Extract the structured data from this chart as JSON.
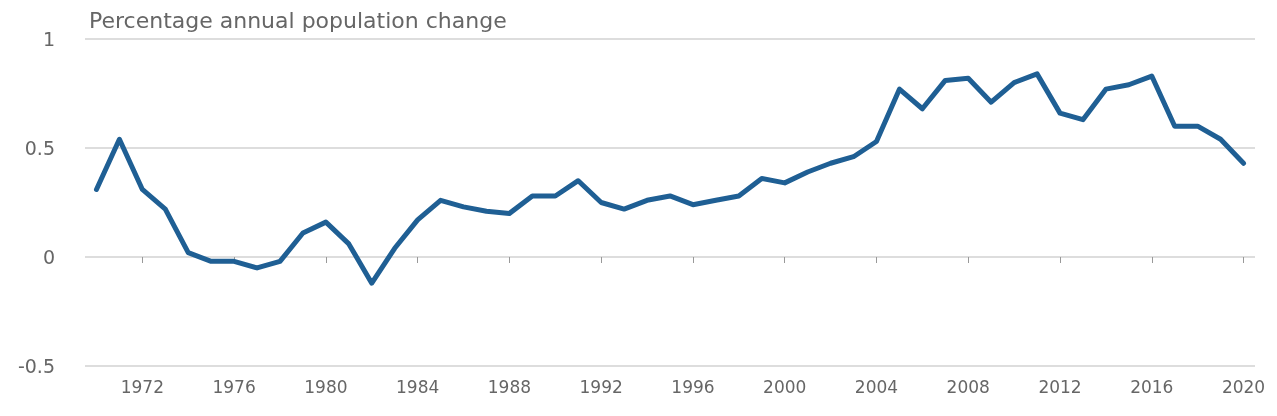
{
  "chart_data": {
    "type": "line",
    "title": "Percentage annual population change",
    "x": [
      1970,
      1971,
      1972,
      1973,
      1974,
      1975,
      1976,
      1977,
      1978,
      1979,
      1980,
      1981,
      1982,
      1983,
      1984,
      1985,
      1986,
      1987,
      1988,
      1989,
      1990,
      1991,
      1992,
      1993,
      1994,
      1995,
      1996,
      1997,
      1998,
      1999,
      2000,
      2001,
      2002,
      2003,
      2004,
      2005,
      2006,
      2007,
      2008,
      2009,
      2010,
      2011,
      2012,
      2013,
      2014,
      2015,
      2016,
      2017,
      2018,
      2019,
      2020
    ],
    "series": [
      {
        "color": "#1f5f94",
        "values": [
          0.31,
          0.54,
          0.31,
          0.22,
          0.02,
          -0.02,
          -0.02,
          -0.05,
          -0.02,
          0.11,
          0.16,
          0.06,
          -0.12,
          0.04,
          0.17,
          0.26,
          0.23,
          0.21,
          0.2,
          0.28,
          0.28,
          0.35,
          0.25,
          0.22,
          0.26,
          0.28,
          0.24,
          0.26,
          0.28,
          0.36,
          0.34,
          0.39,
          0.43,
          0.46,
          0.53,
          0.77,
          0.68,
          0.81,
          0.82,
          0.71,
          0.8,
          0.84,
          0.66,
          0.63,
          0.77,
          0.79,
          0.83,
          0.6,
          0.6,
          0.54,
          0.43
        ]
      }
    ],
    "xlim": [
      1969.5,
      2020.5
    ],
    "xticks": [
      1972,
      1976,
      1980,
      1984,
      1988,
      1992,
      1996,
      2000,
      2004,
      2008,
      2012,
      2016,
      2020
    ],
    "ylim": [
      -0.5,
      1
    ],
    "yticks": [
      -0.5,
      0,
      0.5,
      1
    ],
    "grid": "y",
    "marker": "none",
    "line_style": "solid"
  }
}
